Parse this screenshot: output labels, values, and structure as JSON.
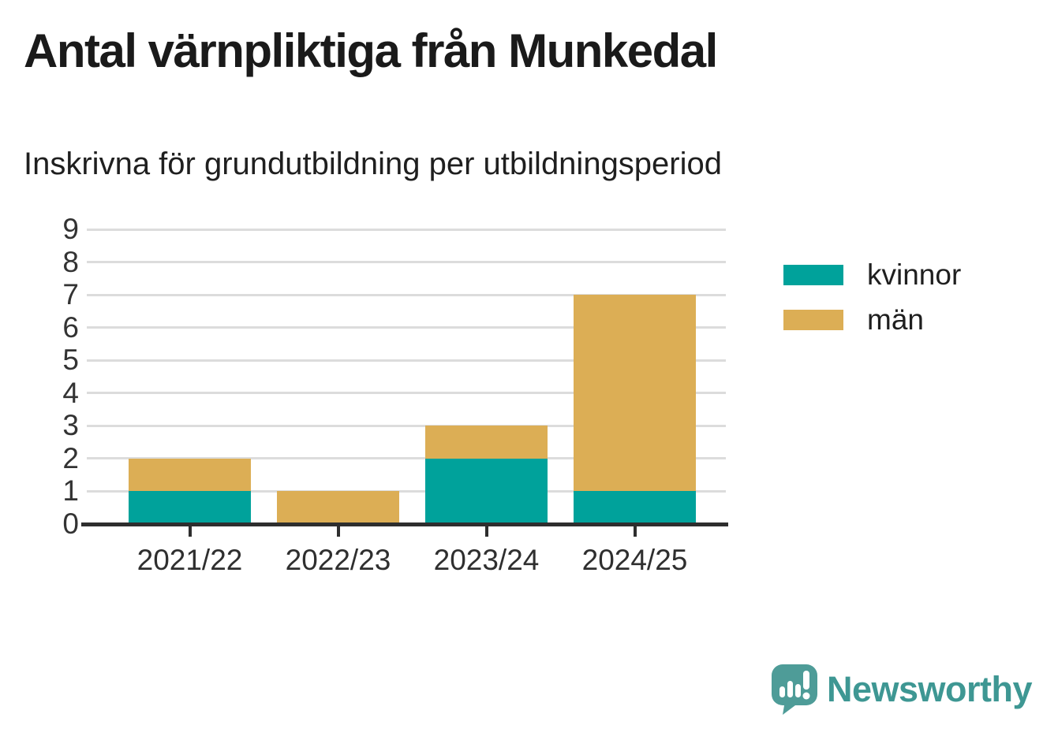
{
  "header": {
    "title": "Antal värnpliktiga från Munkedal",
    "subtitle": "Inskrivna för grundutbildning per utbildningsperiod"
  },
  "chart_data": {
    "type": "bar",
    "stacked": true,
    "title": "Antal värnpliktiga från Munkedal",
    "subtitle": "Inskrivna för grundutbildning per utbildningsperiod",
    "categories": [
      "2021/22",
      "2022/23",
      "2023/24",
      "2024/25"
    ],
    "series": [
      {
        "name": "kvinnor",
        "color": "#00A29B",
        "values": [
          1,
          0,
          2,
          1
        ]
      },
      {
        "name": "män",
        "color": "#DCAE55",
        "values": [
          1,
          1,
          1,
          6
        ]
      }
    ],
    "totals": [
      2,
      1,
      3,
      7
    ],
    "xlabel": "",
    "ylabel": "",
    "ylim": [
      0,
      9
    ],
    "yticks": [
      0,
      1,
      2,
      3,
      4,
      5,
      6,
      7,
      8,
      9
    ],
    "grid": true,
    "legend_position": "right"
  },
  "legend": {
    "items": [
      {
        "label": "kvinnor",
        "color": "#00A29B"
      },
      {
        "label": "män",
        "color": "#DCAE55"
      }
    ]
  },
  "footer": {
    "brand": "Newsworthy"
  },
  "colors": {
    "kvinnor": "#00A29B",
    "man": "#DCAE55",
    "axis": "#2e2e2e",
    "grid": "#dcdcdc",
    "title_text": "#1a1a1a",
    "tick_text": "#333333",
    "brand_text": "#3e9793",
    "logo_fill": "#4e9c98"
  }
}
